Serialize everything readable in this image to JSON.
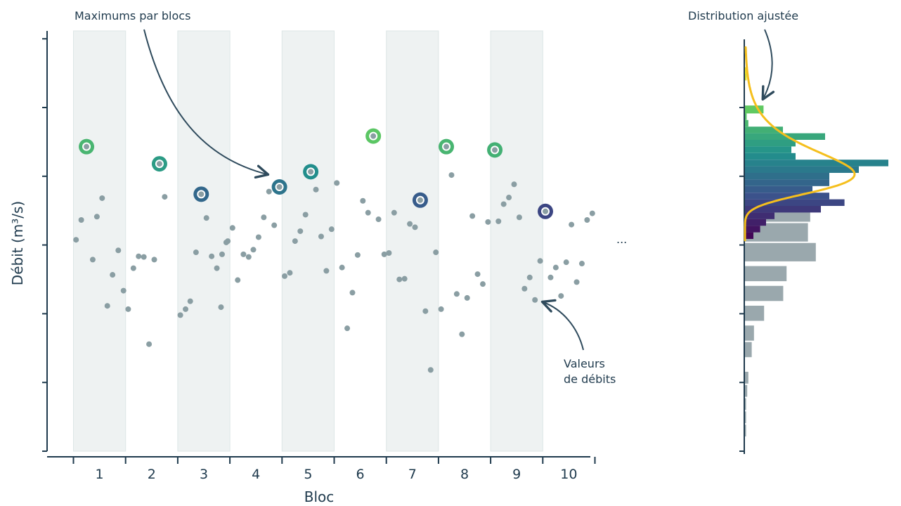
{
  "chart_data": [
    {
      "type": "scatter",
      "xlabel": "Bloc",
      "ylabel": "Débit (m³/s)",
      "blocks": [
        "1",
        "2",
        "3",
        "4",
        "5",
        "6",
        "7",
        "8",
        "9",
        "10"
      ],
      "ylim": [
        0,
        6
      ],
      "y_tick_count": 7,
      "y_tick_labels": "none",
      "shaded_blocks": [
        1,
        3,
        5,
        7,
        9
      ],
      "continuation_marker": "...",
      "color_scale": "viridis",
      "observations": [
        {
          "block": 1,
          "x": 0.05,
          "y": 3.2
        },
        {
          "block": 1,
          "x": 0.15,
          "y": 3.5
        },
        {
          "block": 1,
          "x": 0.37,
          "y": 2.9
        },
        {
          "block": 1,
          "x": 0.45,
          "y": 3.55
        },
        {
          "block": 1,
          "x": 0.55,
          "y": 3.83
        },
        {
          "block": 1,
          "x": 0.65,
          "y": 2.2
        },
        {
          "block": 1,
          "x": 0.75,
          "y": 2.67
        },
        {
          "block": 1,
          "x": 0.86,
          "y": 3.04
        },
        {
          "block": 1,
          "x": 0.96,
          "y": 2.43
        },
        {
          "block": 2,
          "x": 0.05,
          "y": 2.15
        },
        {
          "block": 2,
          "x": 0.15,
          "y": 2.77
        },
        {
          "block": 2,
          "x": 0.25,
          "y": 2.95
        },
        {
          "block": 2,
          "x": 0.35,
          "y": 2.94
        },
        {
          "block": 2,
          "x": 0.45,
          "y": 1.62
        },
        {
          "block": 2,
          "x": 0.55,
          "y": 2.9
        },
        {
          "block": 2,
          "x": 0.75,
          "y": 3.85
        },
        {
          "block": 3,
          "x": 0.83,
          "y": 2.18
        },
        {
          "block": 3,
          "x": 0.93,
          "y": 3.16
        },
        {
          "block": 3,
          "x": 0.05,
          "y": 2.06
        },
        {
          "block": 3,
          "x": 0.15,
          "y": 2.15
        },
        {
          "block": 3,
          "x": 0.24,
          "y": 2.27
        },
        {
          "block": 3,
          "x": 0.35,
          "y": 3.01
        },
        {
          "block": 3,
          "x": 0.55,
          "y": 3.53
        },
        {
          "block": 3,
          "x": 0.65,
          "y": 2.95
        },
        {
          "block": 3,
          "x": 0.75,
          "y": 2.77
        },
        {
          "block": 3,
          "x": 0.85,
          "y": 2.98
        },
        {
          "block": 3,
          "x": 0.96,
          "y": 3.18
        },
        {
          "block": 4,
          "x": 0.05,
          "y": 3.38
        },
        {
          "block": 4,
          "x": 0.15,
          "y": 2.59
        },
        {
          "block": 4,
          "x": 0.26,
          "y": 2.98
        },
        {
          "block": 4,
          "x": 0.36,
          "y": 2.94
        },
        {
          "block": 4,
          "x": 0.45,
          "y": 3.05
        },
        {
          "block": 4,
          "x": 0.55,
          "y": 3.24
        },
        {
          "block": 4,
          "x": 0.65,
          "y": 3.54
        },
        {
          "block": 4,
          "x": 0.75,
          "y": 3.93
        },
        {
          "block": 4,
          "x": 0.85,
          "y": 3.42
        },
        {
          "block": 5,
          "x": 0.05,
          "y": 2.65
        },
        {
          "block": 5,
          "x": 0.15,
          "y": 2.7
        },
        {
          "block": 5,
          "x": 0.25,
          "y": 3.18
        },
        {
          "block": 5,
          "x": 0.35,
          "y": 3.33
        },
        {
          "block": 5,
          "x": 0.45,
          "y": 3.58
        },
        {
          "block": 5,
          "x": 0.65,
          "y": 3.96
        },
        {
          "block": 5,
          "x": 0.75,
          "y": 3.25
        },
        {
          "block": 5,
          "x": 0.85,
          "y": 2.73
        },
        {
          "block": 5,
          "x": 0.95,
          "y": 3.36
        },
        {
          "block": 6,
          "x": 0.05,
          "y": 4.06
        },
        {
          "block": 6,
          "x": 0.15,
          "y": 2.78
        },
        {
          "block": 6,
          "x": 0.25,
          "y": 1.86
        },
        {
          "block": 6,
          "x": 0.35,
          "y": 2.4
        },
        {
          "block": 6,
          "x": 0.45,
          "y": 2.97
        },
        {
          "block": 6,
          "x": 0.55,
          "y": 3.79
        },
        {
          "block": 6,
          "x": 0.65,
          "y": 3.61
        },
        {
          "block": 6,
          "x": 0.85,
          "y": 3.51
        },
        {
          "block": 6,
          "x": 0.96,
          "y": 2.98
        },
        {
          "block": 7,
          "x": 0.05,
          "y": 3.0
        },
        {
          "block": 7,
          "x": 0.15,
          "y": 3.61
        },
        {
          "block": 7,
          "x": 0.25,
          "y": 2.6
        },
        {
          "block": 7,
          "x": 0.35,
          "y": 2.61
        },
        {
          "block": 7,
          "x": 0.45,
          "y": 3.44
        },
        {
          "block": 7,
          "x": 0.55,
          "y": 3.39
        },
        {
          "block": 7,
          "x": 0.75,
          "y": 2.12
        },
        {
          "block": 7,
          "x": 0.85,
          "y": 1.23
        },
        {
          "block": 7,
          "x": 0.95,
          "y": 3.01
        },
        {
          "block": 8,
          "x": 0.05,
          "y": 2.15
        },
        {
          "block": 8,
          "x": 0.25,
          "y": 4.18
        },
        {
          "block": 8,
          "x": 0.35,
          "y": 2.38
        },
        {
          "block": 8,
          "x": 0.45,
          "y": 1.77
        },
        {
          "block": 8,
          "x": 0.55,
          "y": 2.32
        },
        {
          "block": 8,
          "x": 0.65,
          "y": 3.56
        },
        {
          "block": 8,
          "x": 0.75,
          "y": 2.68
        },
        {
          "block": 8,
          "x": 0.85,
          "y": 2.53
        },
        {
          "block": 8,
          "x": 0.95,
          "y": 3.47
        },
        {
          "block": 9,
          "x": 0.15,
          "y": 3.48
        },
        {
          "block": 9,
          "x": 0.25,
          "y": 3.74
        },
        {
          "block": 9,
          "x": 0.35,
          "y": 3.84
        },
        {
          "block": 9,
          "x": 0.45,
          "y": 4.04
        },
        {
          "block": 9,
          "x": 0.55,
          "y": 3.54
        },
        {
          "block": 9,
          "x": 0.65,
          "y": 2.46
        },
        {
          "block": 9,
          "x": 0.75,
          "y": 2.63
        },
        {
          "block": 9,
          "x": 0.85,
          "y": 2.29
        },
        {
          "block": 9,
          "x": 0.95,
          "y": 2.88
        },
        {
          "block": 10,
          "x": 0.15,
          "y": 2.63
        },
        {
          "block": 10,
          "x": 0.25,
          "y": 2.78
        },
        {
          "block": 10,
          "x": 0.35,
          "y": 2.35
        },
        {
          "block": 10,
          "x": 0.45,
          "y": 2.86
        },
        {
          "block": 10,
          "x": 0.55,
          "y": 3.43
        },
        {
          "block": 10,
          "x": 0.65,
          "y": 2.56
        },
        {
          "block": 10,
          "x": 0.75,
          "y": 2.84
        },
        {
          "block": 10,
          "x": 0.85,
          "y": 3.5
        },
        {
          "block": 10,
          "x": 0.95,
          "y": 3.6
        }
      ],
      "block_maxima": [
        {
          "block": 1,
          "x": 0.25,
          "y": 4.61
        },
        {
          "block": 2,
          "x": 0.65,
          "y": 4.35
        },
        {
          "block": 3,
          "x": 0.45,
          "y": 3.89
        },
        {
          "block": 4,
          "x": 0.95,
          "y": 4.0
        },
        {
          "block": 5,
          "x": 0.55,
          "y": 4.23
        },
        {
          "block": 6,
          "x": 0.75,
          "y": 4.77
        },
        {
          "block": 7,
          "x": 0.65,
          "y": 3.8
        },
        {
          "block": 8,
          "x": 0.15,
          "y": 4.61
        },
        {
          "block": 9,
          "x": 0.08,
          "y": 4.56
        },
        {
          "block": 10,
          "x": 0.05,
          "y": 3.63
        }
      ]
    },
    {
      "type": "bar",
      "orientation": "horizontal",
      "ylim": [
        0,
        6
      ],
      "y_tick_count": 6,
      "histogram_bins": [
        {
          "y0": 0.0,
          "y1": 0.2,
          "value": 1
        },
        {
          "y0": 0.2,
          "y1": 0.4,
          "value": 1
        },
        {
          "y0": 0.4,
          "y1": 0.6,
          "value": 1
        },
        {
          "y0": 0.6,
          "y1": 0.8,
          "value": 2
        },
        {
          "y0": 0.8,
          "y1": 1.0,
          "value": 3
        },
        {
          "y0": 1.2,
          "y1": 1.45,
          "value": 6
        },
        {
          "y0": 1.45,
          "y1": 1.7,
          "value": 8
        },
        {
          "y0": 1.75,
          "y1": 2.0,
          "value": 17
        },
        {
          "y0": 2.05,
          "y1": 2.3,
          "value": 34
        },
        {
          "y0": 2.35,
          "y1": 2.6,
          "value": 37
        },
        {
          "y0": 2.65,
          "y1": 2.95,
          "value": 63
        },
        {
          "y0": 2.95,
          "y1": 3.25,
          "value": 56
        },
        {
          "y0": 3.25,
          "y1": 3.55,
          "value": 58
        }
      ],
      "maxima_histogram": [
        {
          "y0": 3.0,
          "y1": 3.1,
          "value": 10
        },
        {
          "y0": 3.1,
          "y1": 3.2,
          "value": 18
        },
        {
          "y0": 3.2,
          "y1": 3.3,
          "value": 25
        },
        {
          "y0": 3.3,
          "y1": 3.4,
          "value": 35
        },
        {
          "y0": 3.4,
          "y1": 3.5,
          "value": 90
        },
        {
          "y0": 3.5,
          "y1": 3.6,
          "value": 118
        },
        {
          "y0": 3.6,
          "y1": 3.7,
          "value": 100
        },
        {
          "y0": 3.7,
          "y1": 3.8,
          "value": 80
        },
        {
          "y0": 3.8,
          "y1": 3.9,
          "value": 100
        },
        {
          "y0": 3.9,
          "y1": 4.0,
          "value": 100
        },
        {
          "y0": 4.0,
          "y1": 4.1,
          "value": 135
        },
        {
          "y0": 4.1,
          "y1": 4.2,
          "value": 170
        },
        {
          "y0": 4.2,
          "y1": 4.3,
          "value": 60
        },
        {
          "y0": 4.3,
          "y1": 4.4,
          "value": 55
        },
        {
          "y0": 4.4,
          "y1": 4.5,
          "value": 60
        },
        {
          "y0": 4.5,
          "y1": 4.6,
          "value": 95
        },
        {
          "y0": 4.6,
          "y1": 4.7,
          "value": 45
        },
        {
          "y0": 4.7,
          "y1": 4.8,
          "value": 4
        },
        {
          "y0": 4.8,
          "y1": 4.9,
          "value": 2
        },
        {
          "y0": 4.9,
          "y1": 5.0,
          "value": 1
        },
        {
          "y0": 4.9,
          "y1": 5.02,
          "value": 22
        },
        {
          "y0": 5.4,
          "y1": 5.5,
          "value": 2
        },
        {
          "y0": 5.5,
          "y1": 5.6,
          "value": 2
        }
      ],
      "fitted_curve": {
        "type": "gumbel_like",
        "mode": 3.98,
        "scale": 0.32,
        "peak_value": 130,
        "color": "#f5bf1d"
      }
    }
  ],
  "annotations": {
    "maxima_label": "Maximums par blocs",
    "values_label_line1": "Valeurs",
    "values_label_line2": "de débits",
    "fit_label": "Distribution ajustée"
  }
}
